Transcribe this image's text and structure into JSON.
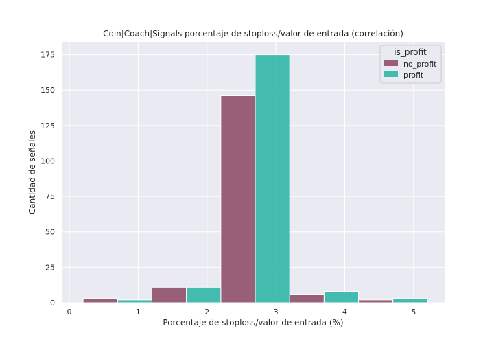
{
  "chart_data": {
    "type": "bar",
    "title": "Coin|Coach|Signals porcentaje de stoploss/valor de entrada (correlación)",
    "xlabel": "Porcentaje de stoploss/valor de entrada (%)",
    "ylabel": "Cantidad de señales",
    "xlim": [
      -0.1,
      5.45
    ],
    "ylim": [
      0,
      184
    ],
    "x_ticks": [
      0,
      1,
      2,
      3,
      4,
      5
    ],
    "y_ticks": [
      0,
      25,
      50,
      75,
      100,
      125,
      150,
      175
    ],
    "grid": true,
    "legend": {
      "title": "is_profit",
      "placement": "top-right",
      "entries": [
        "no_profit",
        "profit"
      ]
    },
    "bin_edges": [
      0.2,
      1.2,
      2.2,
      3.2,
      4.2,
      5.2
    ],
    "series": [
      {
        "name": "no_profit",
        "color": "#8b4563",
        "values": [
          3,
          11,
          146,
          6,
          2
        ]
      },
      {
        "name": "profit",
        "color": "#26b3a3",
        "values": [
          2,
          11,
          175,
          8,
          3
        ]
      }
    ]
  }
}
